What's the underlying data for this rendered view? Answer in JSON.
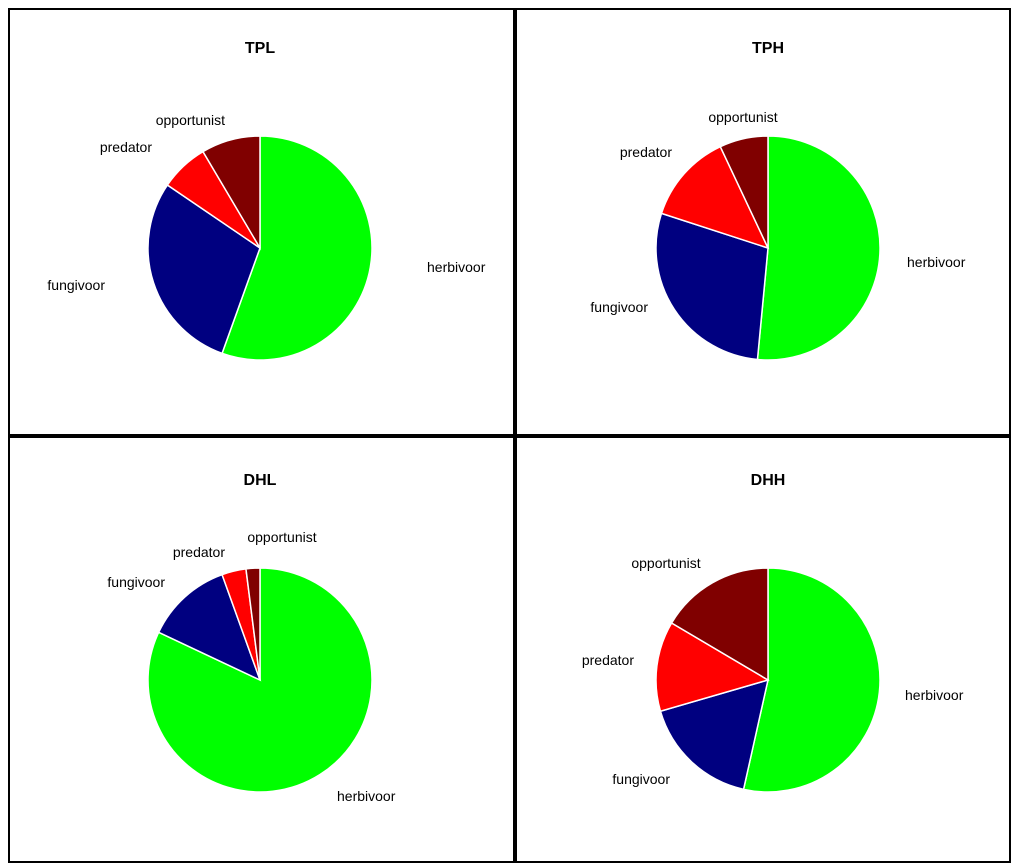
{
  "colors": {
    "herbivoor": "#00ff00",
    "fungivoor": "#000080",
    "predator": "#ff0000",
    "opportunist": "#800000",
    "border": "#000000",
    "slice_edge": "#ffffff"
  },
  "chart_data": [
    {
      "type": "pie",
      "title": "TPL",
      "start_angle_deg": 0,
      "direction": "clockwise",
      "slices": [
        {
          "label": "herbivoor",
          "value": 55.5
        },
        {
          "label": "fungivoor",
          "value": 29.0
        },
        {
          "label": "predator",
          "value": 7.0
        },
        {
          "label": "opportunist",
          "value": 8.5
        }
      ]
    },
    {
      "type": "pie",
      "title": "TPH",
      "start_angle_deg": 0,
      "direction": "clockwise",
      "slices": [
        {
          "label": "herbivoor",
          "value": 51.5
        },
        {
          "label": "fungivoor",
          "value": 28.5
        },
        {
          "label": "predator",
          "value": 13.0
        },
        {
          "label": "opportunist",
          "value": 7.0
        }
      ]
    },
    {
      "type": "pie",
      "title": "DHL",
      "start_angle_deg": 0,
      "direction": "clockwise",
      "slices": [
        {
          "label": "herbivoor",
          "value": 82.0
        },
        {
          "label": "fungivoor",
          "value": 12.5
        },
        {
          "label": "predator",
          "value": 3.5
        },
        {
          "label": "opportunist",
          "value": 2.0
        }
      ]
    },
    {
      "type": "pie",
      "title": "DHH",
      "start_angle_deg": 0,
      "direction": "clockwise",
      "slices": [
        {
          "label": "herbivoor",
          "value": 53.5
        },
        {
          "label": "fungivoor",
          "value": 17.0
        },
        {
          "label": "predator",
          "value": 13.0
        },
        {
          "label": "opportunist",
          "value": 16.5
        }
      ]
    }
  ]
}
